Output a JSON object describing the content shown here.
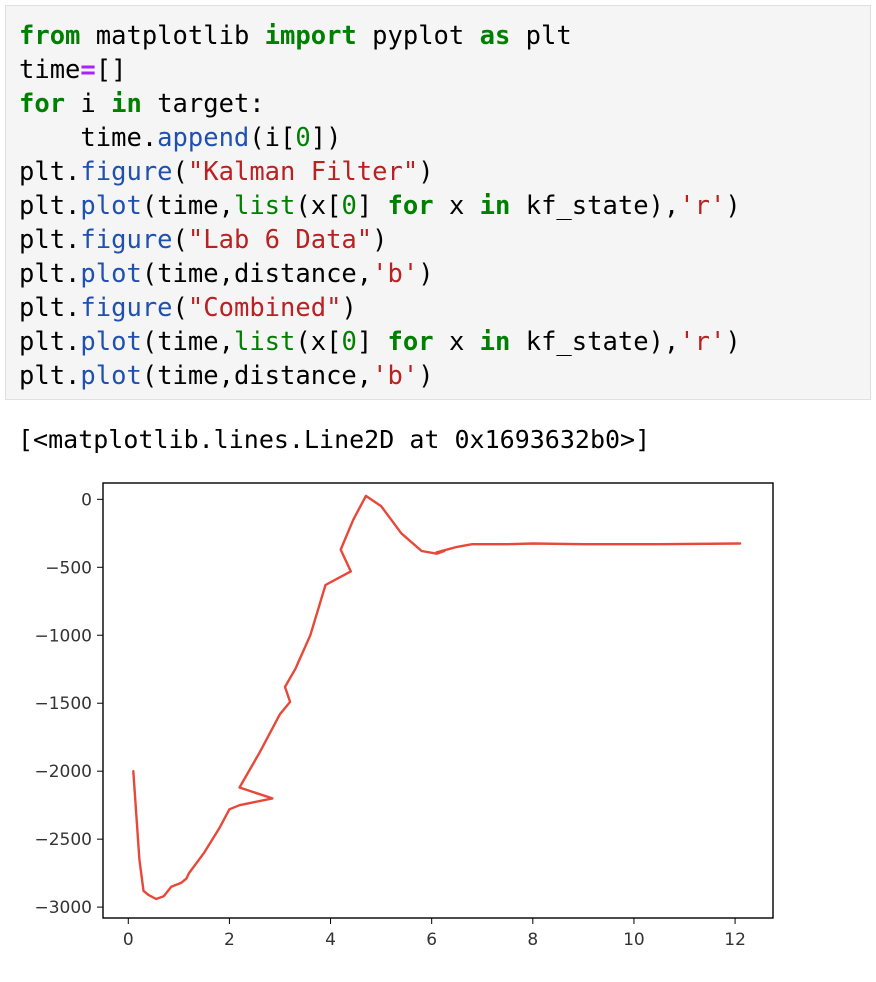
{
  "code_cell": {
    "lines": [
      [
        {
          "t": "from",
          "c": "kw"
        },
        {
          "t": " matplotlib "
        },
        {
          "t": "import",
          "c": "kw"
        },
        {
          "t": " pyplot "
        },
        {
          "t": "as",
          "c": "kw"
        },
        {
          "t": " plt"
        }
      ],
      [
        {
          "t": "time"
        },
        {
          "t": "=",
          "c": "op"
        },
        {
          "t": "[]"
        }
      ],
      [
        {
          "t": "for",
          "c": "kw"
        },
        {
          "t": " i "
        },
        {
          "t": "in",
          "c": "kw"
        },
        {
          "t": " target:"
        }
      ],
      [
        {
          "t": "    time."
        },
        {
          "t": "append",
          "c": "fn"
        },
        {
          "t": "(i["
        },
        {
          "t": "0",
          "c": "nm"
        },
        {
          "t": "])"
        }
      ],
      [
        {
          "t": "plt."
        },
        {
          "t": "figure",
          "c": "fn"
        },
        {
          "t": "("
        },
        {
          "t": "\"Kalman Filter\"",
          "c": "st"
        },
        {
          "t": ")"
        }
      ],
      [
        {
          "t": "plt."
        },
        {
          "t": "plot",
          "c": "fn"
        },
        {
          "t": "(time,"
        },
        {
          "t": "list",
          "c": "nm"
        },
        {
          "t": "(x["
        },
        {
          "t": "0",
          "c": "nm"
        },
        {
          "t": "] "
        },
        {
          "t": "for",
          "c": "kw"
        },
        {
          "t": " x "
        },
        {
          "t": "in",
          "c": "kw"
        },
        {
          "t": " kf_state),"
        },
        {
          "t": "'r'",
          "c": "st"
        },
        {
          "t": ")"
        }
      ],
      [
        {
          "t": "plt."
        },
        {
          "t": "figure",
          "c": "fn"
        },
        {
          "t": "("
        },
        {
          "t": "\"Lab 6 Data\"",
          "c": "st"
        },
        {
          "t": ")"
        }
      ],
      [
        {
          "t": "plt."
        },
        {
          "t": "plot",
          "c": "fn"
        },
        {
          "t": "(time,distance,"
        },
        {
          "t": "'b'",
          "c": "st"
        },
        {
          "t": ")"
        }
      ],
      [
        {
          "t": "plt."
        },
        {
          "t": "figure",
          "c": "fn"
        },
        {
          "t": "("
        },
        {
          "t": "\"Combined\"",
          "c": "st"
        },
        {
          "t": ")"
        }
      ],
      [
        {
          "t": "plt."
        },
        {
          "t": "plot",
          "c": "fn"
        },
        {
          "t": "(time,"
        },
        {
          "t": "list",
          "c": "nm"
        },
        {
          "t": "(x["
        },
        {
          "t": "0",
          "c": "nm"
        },
        {
          "t": "] "
        },
        {
          "t": "for",
          "c": "kw"
        },
        {
          "t": " x "
        },
        {
          "t": "in",
          "c": "kw"
        },
        {
          "t": " kf_state),"
        },
        {
          "t": "'r'",
          "c": "st"
        },
        {
          "t": ")"
        }
      ],
      [
        {
          "t": "plt."
        },
        {
          "t": "plot",
          "c": "fn"
        },
        {
          "t": "(time,distance,"
        },
        {
          "t": "'b'",
          "c": "st"
        },
        {
          "t": ")"
        }
      ]
    ]
  },
  "output": {
    "text": "[<matplotlib.lines.Line2D at 0x1693632b0>]"
  },
  "chart_data": {
    "type": "line",
    "title": "",
    "xlabel": "",
    "ylabel": "",
    "xlim": [
      -0.5,
      12.75
    ],
    "ylim": [
      -3080,
      120
    ],
    "x_ticks": [
      0,
      2,
      4,
      6,
      8,
      10,
      12
    ],
    "y_ticks": [
      0,
      -500,
      -1000,
      -1500,
      -2000,
      -2500,
      -3000
    ],
    "x_tick_labels": [
      "0",
      "2",
      "4",
      "6",
      "8",
      "10",
      "12"
    ],
    "y_tick_labels": [
      "0",
      "−500",
      "−1000",
      "−1500",
      "−2000",
      "−2500",
      "−3000"
    ],
    "grid": false,
    "series": [
      {
        "color": "#e8483a",
        "x": [
          0.1,
          0.22,
          0.3,
          0.4,
          0.55,
          0.7,
          0.85,
          1.05,
          1.15,
          1.2,
          1.5,
          1.8,
          2.0,
          2.2,
          2.85,
          2.2,
          2.6,
          3.0,
          3.2,
          3.1,
          3.3,
          3.6,
          3.9,
          4.15,
          4.4,
          4.2,
          4.45,
          4.7,
          5.0,
          5.4,
          5.8,
          6.1,
          6.25,
          6.1,
          6.5,
          6.8,
          7.5,
          8.0,
          9.0,
          10.5,
          12.1
        ],
        "y": [
          -2000,
          -2650,
          -2880,
          -2910,
          -2940,
          -2920,
          -2850,
          -2820,
          -2790,
          -2750,
          -2600,
          -2420,
          -2280,
          -2250,
          -2200,
          -2120,
          -1860,
          -1580,
          -1490,
          -1380,
          -1250,
          -1000,
          -630,
          -580,
          -530,
          -370,
          -150,
          25,
          -50,
          -250,
          -380,
          -400,
          -380,
          -390,
          -350,
          -330,
          -330,
          -325,
          -330,
          -330,
          -325
        ]
      }
    ]
  }
}
